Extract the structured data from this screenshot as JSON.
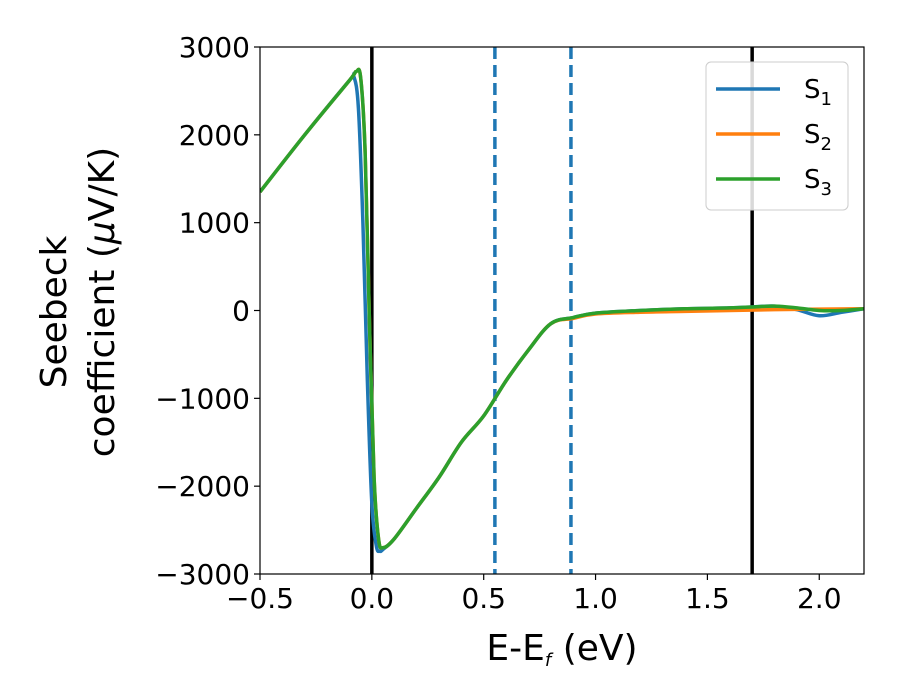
{
  "chart_data": {
    "type": "line",
    "xlabel": "E-E",
    "xlabel_sub": "f",
    "xlabel_unit": " (eV)",
    "ylabel_line1": "Seebeck",
    "ylabel_line2": "coefficient  (",
    "ylabel_mu": "μ",
    "ylabel_unit": "V/K)",
    "xlim": [
      -0.5,
      2.2
    ],
    "ylim": [
      -3000,
      3000
    ],
    "x_ticks": [
      -0.5,
      0.0,
      0.5,
      1.0,
      1.5,
      2.0
    ],
    "x_tick_labels": [
      "−0.5",
      "0.0",
      "0.5",
      "1.0",
      "1.5",
      "2.0"
    ],
    "y_ticks": [
      -3000,
      -2000,
      -1000,
      0,
      1000,
      2000,
      3000
    ],
    "y_tick_labels": [
      "−3000",
      "−2000",
      "−1000",
      "0",
      "1000",
      "2000",
      "3000"
    ],
    "grid": false,
    "legend_position": "top-right",
    "vertical_lines": [
      {
        "x": 0.0,
        "style": "solid",
        "color": "#000000"
      },
      {
        "x": 1.7,
        "style": "solid",
        "color": "#000000"
      },
      {
        "x": 0.55,
        "style": "dashed",
        "color": "#1f77b4"
      },
      {
        "x": 0.89,
        "style": "dashed",
        "color": "#1f77b4"
      }
    ],
    "series": [
      {
        "name": "S",
        "sub": "1",
        "color": "#1f77b4",
        "x": [
          -0.5,
          -0.3,
          -0.1,
          -0.08,
          -0.06,
          -0.04,
          -0.02,
          0.0,
          0.02,
          0.035,
          0.05,
          0.1,
          0.2,
          0.3,
          0.4,
          0.5,
          0.6,
          0.7,
          0.8,
          0.9,
          1.0,
          1.2,
          1.4,
          1.6,
          1.7,
          1.8,
          1.9,
          2.0,
          2.1,
          2.2
        ],
        "y": [
          1350,
          2000,
          2620,
          2660,
          2300,
          1000,
          -800,
          -2200,
          -2680,
          -2740,
          -2720,
          -2600,
          -2250,
          -1900,
          -1500,
          -1200,
          -800,
          -450,
          -150,
          -80,
          -30,
          0,
          20,
          30,
          40,
          50,
          10,
          -60,
          -20,
          20
        ]
      },
      {
        "name": "S",
        "sub": "2",
        "color": "#ff7f0e",
        "x": [
          -0.5,
          -0.3,
          -0.1,
          -0.07,
          -0.05,
          -0.03,
          -0.01,
          0.01,
          0.03,
          0.05,
          0.1,
          0.2,
          0.3,
          0.4,
          0.5,
          0.6,
          0.7,
          0.8,
          0.9,
          1.0,
          1.2,
          1.4,
          1.6,
          1.8,
          2.0,
          2.2
        ],
        "y": [
          1350,
          2000,
          2620,
          2720,
          2650,
          1800,
          -200,
          -1900,
          -2600,
          -2700,
          -2600,
          -2250,
          -1900,
          -1500,
          -1200,
          -800,
          -450,
          -150,
          -90,
          -40,
          -20,
          -10,
          0,
          10,
          15,
          20
        ]
      },
      {
        "name": "S",
        "sub": "3",
        "color": "#2ca02c",
        "x": [
          -0.5,
          -0.3,
          -0.1,
          -0.07,
          -0.05,
          -0.03,
          -0.01,
          0.01,
          0.03,
          0.05,
          0.1,
          0.2,
          0.3,
          0.4,
          0.5,
          0.6,
          0.7,
          0.8,
          0.9,
          1.0,
          1.2,
          1.4,
          1.6,
          1.7,
          1.8,
          1.9,
          2.0,
          2.1,
          2.2
        ],
        "y": [
          1350,
          2000,
          2620,
          2720,
          2650,
          1800,
          -200,
          -1900,
          -2600,
          -2700,
          -2600,
          -2250,
          -1900,
          -1500,
          -1200,
          -800,
          -450,
          -150,
          -80,
          -30,
          0,
          20,
          30,
          40,
          50,
          30,
          0,
          0,
          20
        ]
      }
    ]
  }
}
